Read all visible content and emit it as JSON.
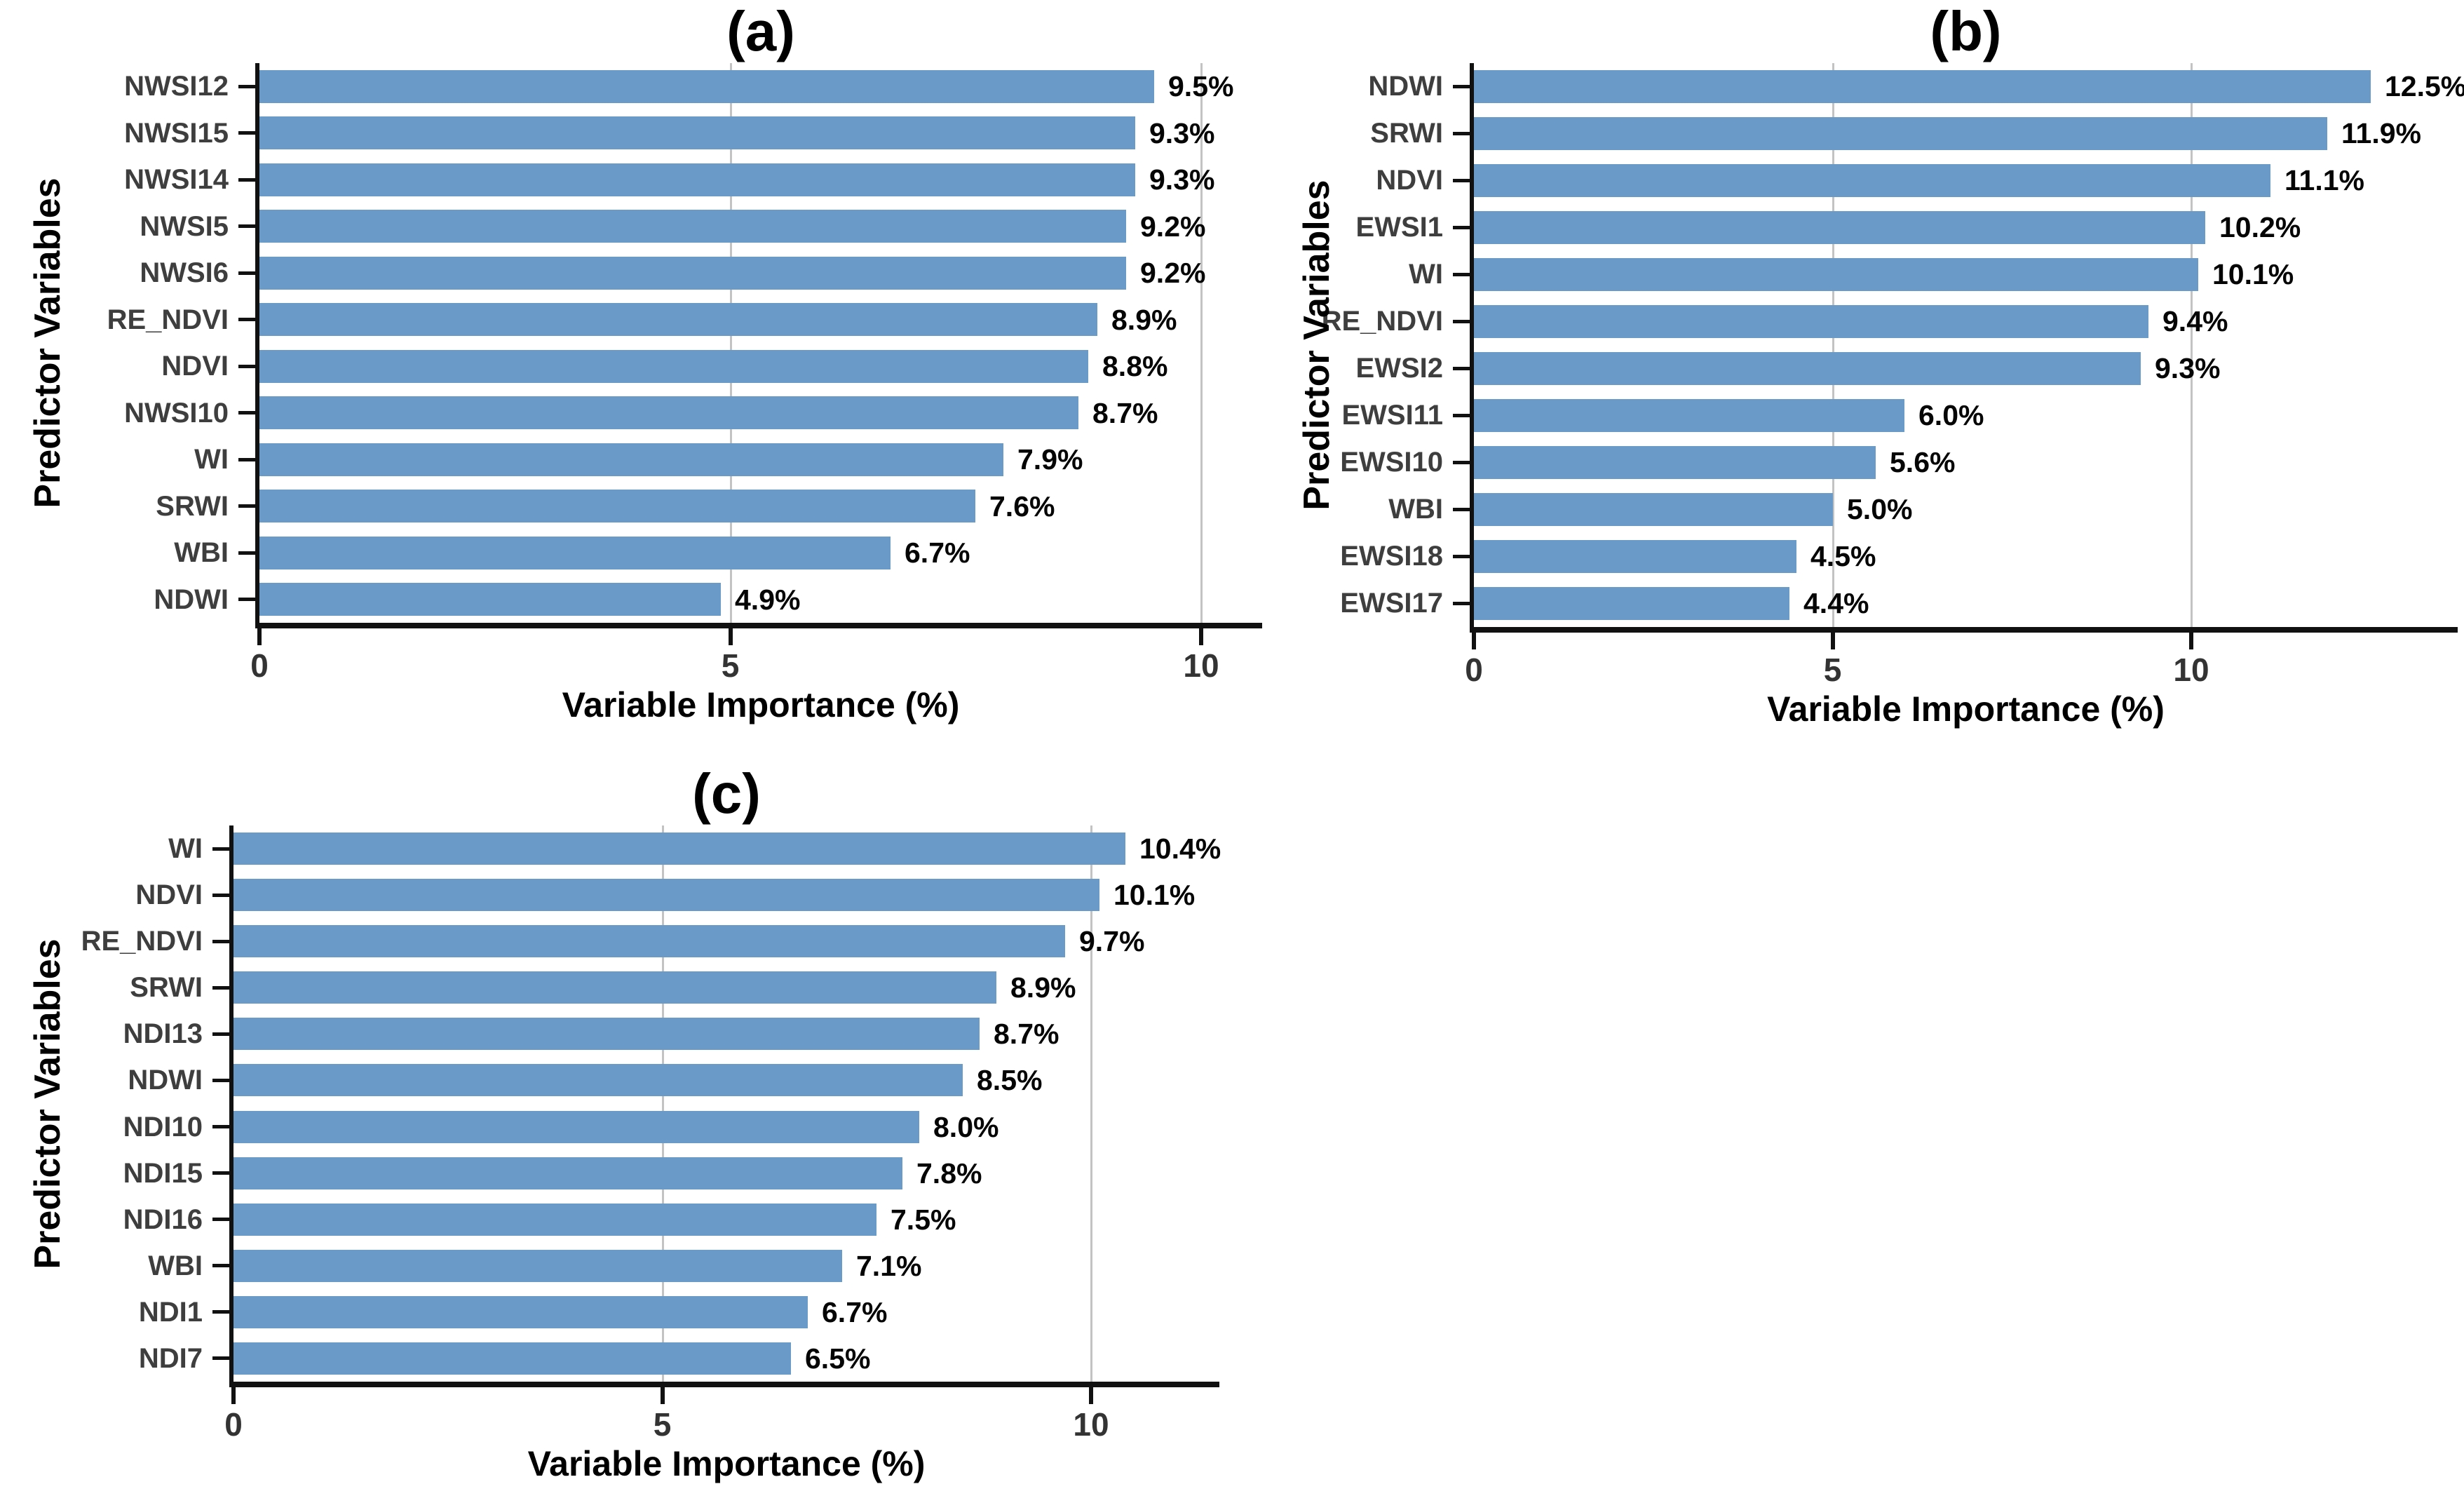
{
  "colors": {
    "bar": "#6A9AC8",
    "grid": "#C3C3C3",
    "axis": "#111111",
    "category_label": "#3E3E3E",
    "value_label": "#050505",
    "tick_number": "#333333",
    "title": "#000000",
    "background": "#FFFFFF"
  },
  "chart_data": [
    {
      "type": "bar",
      "orientation": "horizontal",
      "title": "(a)",
      "xlabel": "Variable Importance (%)",
      "ylabel": "Predictor Variables",
      "x_ticks": [
        0,
        5,
        10
      ],
      "x_tick_labels": [
        "0",
        "5",
        "10"
      ],
      "xlim": [
        0,
        10.65
      ],
      "grid": true,
      "categories": [
        "NWSI12",
        "NWSI15",
        "NWSI14",
        "NWSI5",
        "NWSI6",
        "RE_NDVI",
        "NDVI",
        "NWSI10",
        "WI",
        "SRWI",
        "WBI",
        "NDWI"
      ],
      "values": [
        9.5,
        9.3,
        9.3,
        9.2,
        9.2,
        8.9,
        8.8,
        8.7,
        7.9,
        7.6,
        6.7,
        4.9
      ],
      "value_labels": [
        "9.5%",
        "9.3%",
        "9.3%",
        "9.2%",
        "9.2%",
        "8.9%",
        "8.8%",
        "8.7%",
        "7.9%",
        "7.6%",
        "6.7%",
        "4.9%"
      ]
    },
    {
      "type": "bar",
      "orientation": "horizontal",
      "title": "(b)",
      "xlabel": "Variable Importance (%)",
      "ylabel": "Predictor Variables",
      "x_ticks": [
        0,
        5,
        10
      ],
      "x_tick_labels": [
        "0",
        "5",
        "10"
      ],
      "xlim": [
        0,
        13.7
      ],
      "grid": true,
      "categories": [
        "NDWI",
        "SRWI",
        "NDVI",
        "EWSI1",
        "WI",
        "RE_NDVI",
        "EWSI2",
        "EWSI11",
        "EWSI10",
        "WBI",
        "EWSI18",
        "EWSI17"
      ],
      "values": [
        12.5,
        11.9,
        11.1,
        10.2,
        10.1,
        9.4,
        9.3,
        6.0,
        5.6,
        5.0,
        4.5,
        4.4
      ],
      "value_labels": [
        "12.5%",
        "11.9%",
        "11.1%",
        "10.2%",
        "10.1%",
        "9.4%",
        "9.3%",
        "6.0%",
        "5.6%",
        "5.0%",
        "4.5%",
        "4.4%"
      ]
    },
    {
      "type": "bar",
      "orientation": "horizontal",
      "title": "(c)",
      "xlabel": "Variable Importance (%)",
      "ylabel": "Predictor Variables",
      "x_ticks": [
        0,
        5,
        10
      ],
      "x_tick_labels": [
        "0",
        "5",
        "10"
      ],
      "xlim": [
        0,
        11.5
      ],
      "grid": true,
      "categories": [
        "WI",
        "NDVI",
        "RE_NDVI",
        "SRWI",
        "NDI13",
        "NDWI",
        "NDI10",
        "NDI15",
        "NDI16",
        "WBI",
        "NDI1",
        "NDI7"
      ],
      "values": [
        10.4,
        10.1,
        9.7,
        8.9,
        8.7,
        8.5,
        8.0,
        7.8,
        7.5,
        7.1,
        6.7,
        6.5
      ],
      "value_labels": [
        "10.4%",
        "10.1%",
        "9.7%",
        "8.9%",
        "8.7%",
        "8.5%",
        "8.0%",
        "7.8%",
        "7.5%",
        "7.1%",
        "6.7%",
        "6.5%"
      ]
    }
  ]
}
